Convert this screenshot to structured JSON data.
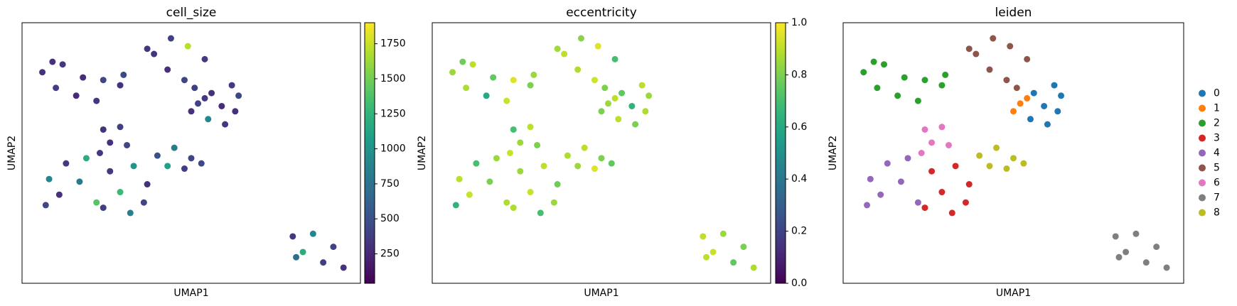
{
  "chart_data": [
    {
      "type": "scatter",
      "title": "cell_size",
      "xlabel": "UMAP1",
      "ylabel": "UMAP2",
      "colormap": "viridis",
      "xlim": [
        0,
        10
      ],
      "ylim": [
        0,
        10
      ],
      "x": [
        0.6,
        1.2,
        1.8,
        2.4,
        2.9,
        1.0,
        1.6,
        2.2,
        3.0,
        0.9,
        3.9,
        4.4,
        4.9,
        5.4,
        4.3,
        4.8,
        5.1,
        3.7,
        5.6,
        6.2,
        6.4,
        5.9,
        5.5,
        6.0,
        6.3,
        5.2,
        5.4,
        5.0,
        2.4,
        2.9,
        2.6,
        3.1,
        2.3,
        4.0,
        4.5,
        5.0,
        4.3,
        4.8,
        5.3,
        0.8,
        1.3,
        1.9,
        1.1,
        1.7,
        2.2,
        0.7,
        2.6,
        3.3,
        3.7,
        2.9,
        2.4,
        3.2,
        3.6,
        8.0,
        8.6,
        9.2,
        8.3,
        8.9,
        9.5,
        8.1
      ],
      "y": [
        8.1,
        8.4,
        7.9,
        7.8,
        7.6,
        7.5,
        7.2,
        7.0,
        8.0,
        8.5,
        8.8,
        9.4,
        9.1,
        8.6,
        8.2,
        7.8,
        7.5,
        9.0,
        7.3,
        7.6,
        7.2,
        6.8,
        6.3,
        6.1,
        6.6,
        6.9,
        7.1,
        6.6,
        5.9,
        6.0,
        5.4,
        5.3,
        5.0,
        4.9,
        5.2,
        4.8,
        4.5,
        4.4,
        4.6,
        4.0,
        4.6,
        4.8,
        3.4,
        3.9,
        3.1,
        3.0,
        4.3,
        4.5,
        3.8,
        3.5,
        2.9,
        2.7,
        3.1,
        1.8,
        1.9,
        1.4,
        1.2,
        0.8,
        0.6,
        1.0
      ],
      "values": [
        300,
        350,
        280,
        420,
        310,
        380,
        260,
        330,
        450,
        290,
        320,
        400,
        1700,
        360,
        300,
        420,
        380,
        340,
        300,
        350,
        420,
        280,
        900,
        330,
        310,
        400,
        350,
        300,
        320,
        380,
        300,
        420,
        350,
        500,
        800,
        420,
        1100,
        380,
        450,
        900,
        350,
        1200,
        300,
        800,
        1400,
        420,
        350,
        1000,
        300,
        1300,
        380,
        850,
        420,
        350,
        900,
        400,
        1200,
        380,
        300,
        700
      ],
      "clim": [
        40,
        1900
      ],
      "cticks": [
        250,
        500,
        750,
        1000,
        1250,
        1500,
        1750
      ]
    },
    {
      "type": "scatter",
      "title": "eccentricity",
      "xlabel": "UMAP1",
      "ylabel": "UMAP2",
      "colormap": "viridis",
      "xlim": [
        0,
        10
      ],
      "ylim": [
        0,
        10
      ],
      "x": [
        0.6,
        1.2,
        1.8,
        2.4,
        2.9,
        1.0,
        1.6,
        2.2,
        3.0,
        0.9,
        3.9,
        4.4,
        4.9,
        5.4,
        4.3,
        4.8,
        5.1,
        3.7,
        5.6,
        6.2,
        6.4,
        5.9,
        5.5,
        6.0,
        6.3,
        5.2,
        5.4,
        5.0,
        2.4,
        2.9,
        2.6,
        3.1,
        2.3,
        4.0,
        4.5,
        5.0,
        4.3,
        4.8,
        5.3,
        0.8,
        1.3,
        1.9,
        1.1,
        1.7,
        2.2,
        0.7,
        2.6,
        3.3,
        3.7,
        2.9,
        2.4,
        3.2,
        3.6,
        8.0,
        8.6,
        9.2,
        8.3,
        8.9,
        9.5,
        8.1
      ],
      "y": [
        8.1,
        8.4,
        7.9,
        7.8,
        7.6,
        7.5,
        7.2,
        7.0,
        8.0,
        8.5,
        8.8,
        9.4,
        9.1,
        8.6,
        8.2,
        7.8,
        7.5,
        9.0,
        7.3,
        7.6,
        7.2,
        6.8,
        6.3,
        6.1,
        6.6,
        6.9,
        7.1,
        6.6,
        5.9,
        6.0,
        5.4,
        5.3,
        5.0,
        4.9,
        5.2,
        4.8,
        4.5,
        4.4,
        4.6,
        4.0,
        4.6,
        4.8,
        3.4,
        3.9,
        3.1,
        3.0,
        4.3,
        4.5,
        3.8,
        3.5,
        2.9,
        2.7,
        3.1,
        1.8,
        1.9,
        1.4,
        1.2,
        0.8,
        0.6,
        1.0
      ],
      "values": [
        0.85,
        0.9,
        0.75,
        0.95,
        0.8,
        0.88,
        0.6,
        0.92,
        0.85,
        0.78,
        0.9,
        0.82,
        0.95,
        0.7,
        0.88,
        0.93,
        0.8,
        0.86,
        0.75,
        0.9,
        0.85,
        0.65,
        0.9,
        0.8,
        0.88,
        0.85,
        0.9,
        0.8,
        0.7,
        0.9,
        0.85,
        0.8,
        0.92,
        0.88,
        0.9,
        0.8,
        0.85,
        0.95,
        0.75,
        0.9,
        0.7,
        0.85,
        0.92,
        0.8,
        0.88,
        0.65,
        0.85,
        0.9,
        0.78,
        0.92,
        0.88,
        0.7,
        0.85,
        0.9,
        0.85,
        0.8,
        0.92,
        0.75,
        0.88,
        0.9
      ],
      "clim": [
        0,
        1
      ],
      "cticks": [
        {
          "value": 0,
          "label": "0.0"
        },
        {
          "value": 0.2,
          "label": "0.2"
        },
        {
          "value": 0.4,
          "label": "0.4"
        },
        {
          "value": 0.6,
          "label": "0.6"
        },
        {
          "value": 0.8,
          "label": "0.8"
        },
        {
          "value": 1,
          "label": "1.0"
        }
      ]
    },
    {
      "type": "categorical",
      "title": "leiden",
      "xlabel": "UMAP1",
      "ylabel": "UMAP2",
      "xlim": [
        0,
        10
      ],
      "ylim": [
        0,
        10
      ],
      "x": [
        0.6,
        1.2,
        1.8,
        2.4,
        2.9,
        1.0,
        1.6,
        2.2,
        3.0,
        0.9,
        3.9,
        4.4,
        4.9,
        5.4,
        4.3,
        4.8,
        5.1,
        3.7,
        5.6,
        6.2,
        6.4,
        5.9,
        5.5,
        6.0,
        6.3,
        5.2,
        5.4,
        5.0,
        2.4,
        2.9,
        2.6,
        3.1,
        2.3,
        4.0,
        4.5,
        5.0,
        4.3,
        4.8,
        5.3,
        0.8,
        1.3,
        1.9,
        1.1,
        1.7,
        2.2,
        0.7,
        2.6,
        3.3,
        3.7,
        2.9,
        2.4,
        3.2,
        3.6,
        8.0,
        8.6,
        9.2,
        8.3,
        8.9,
        9.5,
        8.1
      ],
      "y": [
        8.1,
        8.4,
        7.9,
        7.8,
        7.6,
        7.5,
        7.2,
        7.0,
        8.0,
        8.5,
        8.8,
        9.4,
        9.1,
        8.6,
        8.2,
        7.8,
        7.5,
        9.0,
        7.3,
        7.6,
        7.2,
        6.8,
        6.3,
        6.1,
        6.6,
        6.9,
        7.1,
        6.6,
        5.9,
        6.0,
        5.4,
        5.3,
        5.0,
        4.9,
        5.2,
        4.8,
        4.5,
        4.4,
        4.6,
        4.0,
        4.6,
        4.8,
        3.4,
        3.9,
        3.1,
        3.0,
        4.3,
        4.5,
        3.8,
        3.5,
        2.9,
        2.7,
        3.1,
        1.8,
        1.9,
        1.4,
        1.2,
        0.8,
        0.6,
        1.0
      ],
      "cluster": [
        2,
        2,
        2,
        2,
        2,
        2,
        2,
        2,
        2,
        2,
        5,
        5,
        5,
        5,
        5,
        5,
        5,
        5,
        0,
        0,
        0,
        0,
        0,
        0,
        0,
        1,
        1,
        1,
        6,
        6,
        6,
        6,
        6,
        8,
        8,
        8,
        8,
        8,
        8,
        4,
        4,
        4,
        4,
        4,
        4,
        4,
        3,
        3,
        3,
        3,
        3,
        3,
        3,
        7,
        7,
        7,
        7,
        7,
        7,
        7
      ],
      "categories": [
        "0",
        "1",
        "2",
        "3",
        "4",
        "5",
        "6",
        "7",
        "8"
      ],
      "colors": [
        "#1f77b4",
        "#ff7f0e",
        "#2ca02c",
        "#d62728",
        "#9467bd",
        "#8c564b",
        "#e377c2",
        "#7f7f7f",
        "#bcbd22"
      ]
    }
  ]
}
